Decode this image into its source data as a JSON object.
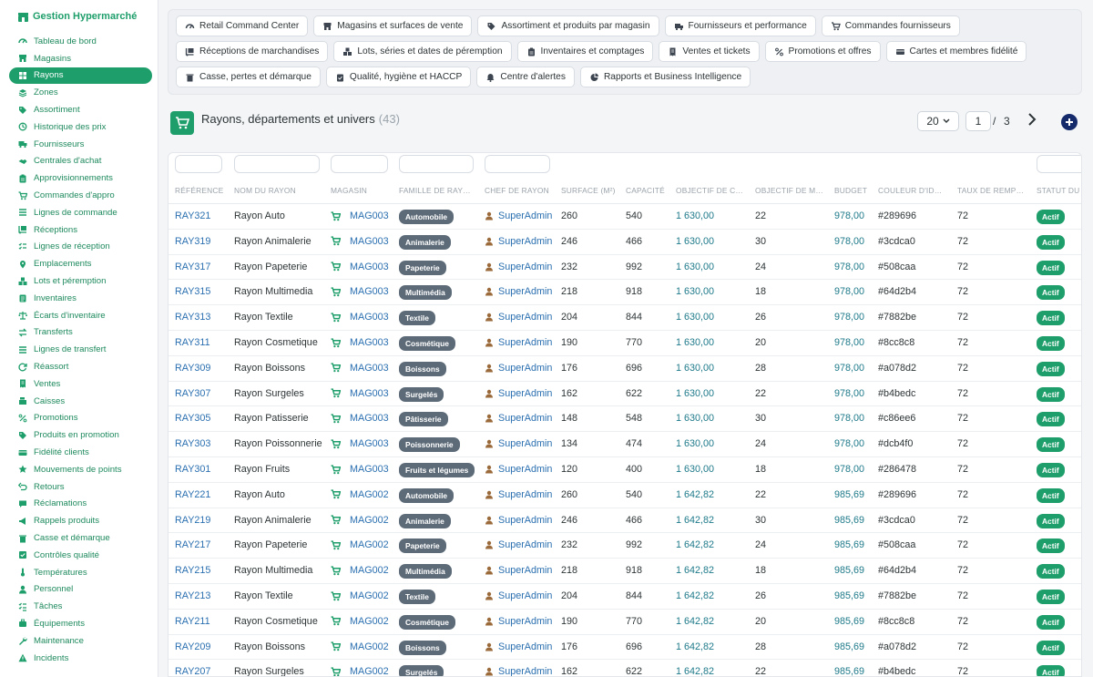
{
  "app": {
    "brand": "Gestion Hypermarché"
  },
  "sidebar": {
    "items": [
      {
        "label": "Tableau de bord",
        "icon": "dashboard-icon"
      },
      {
        "label": "Magasins",
        "icon": "store-icon"
      },
      {
        "label": "Rayons",
        "icon": "grid-icon",
        "active": true
      },
      {
        "label": "Zones",
        "icon": "layers-icon"
      },
      {
        "label": "Assortiment",
        "icon": "tags-icon"
      },
      {
        "label": "Historique des prix",
        "icon": "history-icon"
      },
      {
        "label": "Fournisseurs",
        "icon": "truck-icon"
      },
      {
        "label": "Centrales d'achat",
        "icon": "handshake-icon"
      },
      {
        "label": "Approvisionnements",
        "icon": "clipboard-icon"
      },
      {
        "label": "Commandes d'appro",
        "icon": "cart-icon"
      },
      {
        "label": "Lignes de commande",
        "icon": "list-icon"
      },
      {
        "label": "Réceptions",
        "icon": "dolly-icon"
      },
      {
        "label": "Lignes de réception",
        "icon": "list-check-icon"
      },
      {
        "label": "Emplacements",
        "icon": "pin-icon"
      },
      {
        "label": "Lots et péremption",
        "icon": "boxes-icon"
      },
      {
        "label": "Inventaires",
        "icon": "clipboard-list-icon"
      },
      {
        "label": "Écarts d'inventaire",
        "icon": "scale-icon"
      },
      {
        "label": "Transferts",
        "icon": "exchange-icon"
      },
      {
        "label": "Lignes de transfert",
        "icon": "list-icon"
      },
      {
        "label": "Réassort",
        "icon": "refresh-icon"
      },
      {
        "label": "Ventes",
        "icon": "receipt-icon"
      },
      {
        "label": "Caisses",
        "icon": "cash-register-icon"
      },
      {
        "label": "Promotions",
        "icon": "percent-icon"
      },
      {
        "label": "Produits en promotion",
        "icon": "tag-icon"
      },
      {
        "label": "Fidélité clients",
        "icon": "card-icon"
      },
      {
        "label": "Mouvements de points",
        "icon": "star-icon"
      },
      {
        "label": "Retours",
        "icon": "undo-icon"
      },
      {
        "label": "Réclamations",
        "icon": "comment-icon"
      },
      {
        "label": "Rappels produits",
        "icon": "bullhorn-icon"
      },
      {
        "label": "Casse et démarque",
        "icon": "trash-icon"
      },
      {
        "label": "Contrôles qualité",
        "icon": "check-icon"
      },
      {
        "label": "Températures",
        "icon": "thermometer-icon"
      },
      {
        "label": "Personnel",
        "icon": "user-icon"
      },
      {
        "label": "Tâches",
        "icon": "tasks-icon"
      },
      {
        "label": "Équipements",
        "icon": "tools-icon"
      },
      {
        "label": "Maintenance",
        "icon": "wrench-icon"
      },
      {
        "label": "Incidents",
        "icon": "warning-icon"
      }
    ]
  },
  "tabs": [
    {
      "label": "Retail Command Center",
      "icon": "gauge-icon"
    },
    {
      "label": "Magasins et surfaces de vente",
      "icon": "store-icon"
    },
    {
      "label": "Assortiment et produits par magasin",
      "icon": "tags-icon"
    },
    {
      "label": "Fournisseurs et performance",
      "icon": "truck-icon"
    },
    {
      "label": "Commandes fournisseurs",
      "icon": "cart-icon"
    },
    {
      "label": "Réceptions de marchandises",
      "icon": "dolly-icon"
    },
    {
      "label": "Lots, séries et dates de péremption",
      "icon": "boxes-icon"
    },
    {
      "label": "Inventaires et comptages",
      "icon": "clipboard-icon"
    },
    {
      "label": "Ventes et tickets",
      "icon": "receipt-icon"
    },
    {
      "label": "Promotions et offres",
      "icon": "percent-icon"
    },
    {
      "label": "Cartes et membres fidélité",
      "icon": "card-icon"
    },
    {
      "label": "Casse, pertes et démarque",
      "icon": "trash-icon"
    },
    {
      "label": "Qualité, hygiène et HACCP",
      "icon": "clipboard-check-icon"
    },
    {
      "label": "Centre d'alertes",
      "icon": "bell-icon"
    },
    {
      "label": "Rapports et Business Intelligence",
      "icon": "chart-pie-icon"
    }
  ],
  "page": {
    "title": "Rayons, départements et univers",
    "count": "(43)",
    "per_page": "20",
    "current_page": "1",
    "separator": "/",
    "total_pages": "3"
  },
  "colors": {
    "accent": "#1e9e6a",
    "link": "#2a6fb0",
    "badge_gray": "#5d6b78",
    "add_button": "#142a6b"
  },
  "table": {
    "columns": [
      "Référence",
      "Nom du rayon",
      "Magasin",
      "Famille de ray…",
      "Chef de rayon",
      "Surface (m²)",
      "Capacité",
      "Objectif de c…",
      "Objectif de m…",
      "Budget",
      "Couleur d'id…",
      "Taux de remp…",
      "Statut du"
    ],
    "rows": [
      {
        "ref": "RAY321",
        "name": "Rayon Auto",
        "magasin": "MAG003",
        "famille": "Automobile",
        "chef": "SuperAdmin",
        "surface": "260",
        "capacite": "540",
        "obj_ca": "1 630,00",
        "obj_m": "22",
        "budget": "978,00",
        "couleur": "#289696",
        "taux": "72",
        "statut": "Actif"
      },
      {
        "ref": "RAY319",
        "name": "Rayon Animalerie",
        "magasin": "MAG003",
        "famille": "Animalerie",
        "chef": "SuperAdmin",
        "surface": "246",
        "capacite": "466",
        "obj_ca": "1 630,00",
        "obj_m": "30",
        "budget": "978,00",
        "couleur": "#3cdca0",
        "taux": "72",
        "statut": "Actif"
      },
      {
        "ref": "RAY317",
        "name": "Rayon Papeterie",
        "magasin": "MAG003",
        "famille": "Papeterie",
        "chef": "SuperAdmin",
        "surface": "232",
        "capacite": "992",
        "obj_ca": "1 630,00",
        "obj_m": "24",
        "budget": "978,00",
        "couleur": "#508caa",
        "taux": "72",
        "statut": "Actif"
      },
      {
        "ref": "RAY315",
        "name": "Rayon Multimedia",
        "magasin": "MAG003",
        "famille": "Multimédia",
        "chef": "SuperAdmin",
        "surface": "218",
        "capacite": "918",
        "obj_ca": "1 630,00",
        "obj_m": "18",
        "budget": "978,00",
        "couleur": "#64d2b4",
        "taux": "72",
        "statut": "Actif"
      },
      {
        "ref": "RAY313",
        "name": "Rayon Textile",
        "magasin": "MAG003",
        "famille": "Textile",
        "chef": "SuperAdmin",
        "surface": "204",
        "capacite": "844",
        "obj_ca": "1 630,00",
        "obj_m": "26",
        "budget": "978,00",
        "couleur": "#7882be",
        "taux": "72",
        "statut": "Actif"
      },
      {
        "ref": "RAY311",
        "name": "Rayon Cosmetique",
        "magasin": "MAG003",
        "famille": "Cosmétique",
        "chef": "SuperAdmin",
        "surface": "190",
        "capacite": "770",
        "obj_ca": "1 630,00",
        "obj_m": "20",
        "budget": "978,00",
        "couleur": "#8cc8c8",
        "taux": "72",
        "statut": "Actif"
      },
      {
        "ref": "RAY309",
        "name": "Rayon Boissons",
        "magasin": "MAG003",
        "famille": "Boissons",
        "chef": "SuperAdmin",
        "surface": "176",
        "capacite": "696",
        "obj_ca": "1 630,00",
        "obj_m": "28",
        "budget": "978,00",
        "couleur": "#a078d2",
        "taux": "72",
        "statut": "Actif"
      },
      {
        "ref": "RAY307",
        "name": "Rayon Surgeles",
        "magasin": "MAG003",
        "famille": "Surgelés",
        "chef": "SuperAdmin",
        "surface": "162",
        "capacite": "622",
        "obj_ca": "1 630,00",
        "obj_m": "22",
        "budget": "978,00",
        "couleur": "#b4bedc",
        "taux": "72",
        "statut": "Actif"
      },
      {
        "ref": "RAY305",
        "name": "Rayon Patisserie",
        "magasin": "MAG003",
        "famille": "Pâtisserie",
        "chef": "SuperAdmin",
        "surface": "148",
        "capacite": "548",
        "obj_ca": "1 630,00",
        "obj_m": "30",
        "budget": "978,00",
        "couleur": "#c86ee6",
        "taux": "72",
        "statut": "Actif"
      },
      {
        "ref": "RAY303",
        "name": "Rayon Poissonnerie",
        "magasin": "MAG003",
        "famille": "Poissonnerie",
        "chef": "SuperAdmin",
        "surface": "134",
        "capacite": "474",
        "obj_ca": "1 630,00",
        "obj_m": "24",
        "budget": "978,00",
        "couleur": "#dcb4f0",
        "taux": "72",
        "statut": "Actif"
      },
      {
        "ref": "RAY301",
        "name": "Rayon Fruits",
        "magasin": "MAG003",
        "famille": "Fruits et légumes",
        "chef": "SuperAdmin",
        "surface": "120",
        "capacite": "400",
        "obj_ca": "1 630,00",
        "obj_m": "18",
        "budget": "978,00",
        "couleur": "#286478",
        "taux": "72",
        "statut": "Actif"
      },
      {
        "ref": "RAY221",
        "name": "Rayon Auto",
        "magasin": "MAG002",
        "famille": "Automobile",
        "chef": "SuperAdmin",
        "surface": "260",
        "capacite": "540",
        "obj_ca": "1 642,82",
        "obj_m": "22",
        "budget": "985,69",
        "couleur": "#289696",
        "taux": "72",
        "statut": "Actif"
      },
      {
        "ref": "RAY219",
        "name": "Rayon Animalerie",
        "magasin": "MAG002",
        "famille": "Animalerie",
        "chef": "SuperAdmin",
        "surface": "246",
        "capacite": "466",
        "obj_ca": "1 642,82",
        "obj_m": "30",
        "budget": "985,69",
        "couleur": "#3cdca0",
        "taux": "72",
        "statut": "Actif"
      },
      {
        "ref": "RAY217",
        "name": "Rayon Papeterie",
        "magasin": "MAG002",
        "famille": "Papeterie",
        "chef": "SuperAdmin",
        "surface": "232",
        "capacite": "992",
        "obj_ca": "1 642,82",
        "obj_m": "24",
        "budget": "985,69",
        "couleur": "#508caa",
        "taux": "72",
        "statut": "Actif"
      },
      {
        "ref": "RAY215",
        "name": "Rayon Multimedia",
        "magasin": "MAG002",
        "famille": "Multimédia",
        "chef": "SuperAdmin",
        "surface": "218",
        "capacite": "918",
        "obj_ca": "1 642,82",
        "obj_m": "18",
        "budget": "985,69",
        "couleur": "#64d2b4",
        "taux": "72",
        "statut": "Actif"
      },
      {
        "ref": "RAY213",
        "name": "Rayon Textile",
        "magasin": "MAG002",
        "famille": "Textile",
        "chef": "SuperAdmin",
        "surface": "204",
        "capacite": "844",
        "obj_ca": "1 642,82",
        "obj_m": "26",
        "budget": "985,69",
        "couleur": "#7882be",
        "taux": "72",
        "statut": "Actif"
      },
      {
        "ref": "RAY211",
        "name": "Rayon Cosmetique",
        "magasin": "MAG002",
        "famille": "Cosmétique",
        "chef": "SuperAdmin",
        "surface": "190",
        "capacite": "770",
        "obj_ca": "1 642,82",
        "obj_m": "20",
        "budget": "985,69",
        "couleur": "#8cc8c8",
        "taux": "72",
        "statut": "Actif"
      },
      {
        "ref": "RAY209",
        "name": "Rayon Boissons",
        "magasin": "MAG002",
        "famille": "Boissons",
        "chef": "SuperAdmin",
        "surface": "176",
        "capacite": "696",
        "obj_ca": "1 642,82",
        "obj_m": "28",
        "budget": "985,69",
        "couleur": "#a078d2",
        "taux": "72",
        "statut": "Actif"
      },
      {
        "ref": "RAY207",
        "name": "Rayon Surgeles",
        "magasin": "MAG002",
        "famille": "Surgelés",
        "chef": "SuperAdmin",
        "surface": "162",
        "capacite": "622",
        "obj_ca": "1 642,82",
        "obj_m": "22",
        "budget": "985,69",
        "couleur": "#b4bedc",
        "taux": "72",
        "statut": "Actif"
      }
    ]
  }
}
